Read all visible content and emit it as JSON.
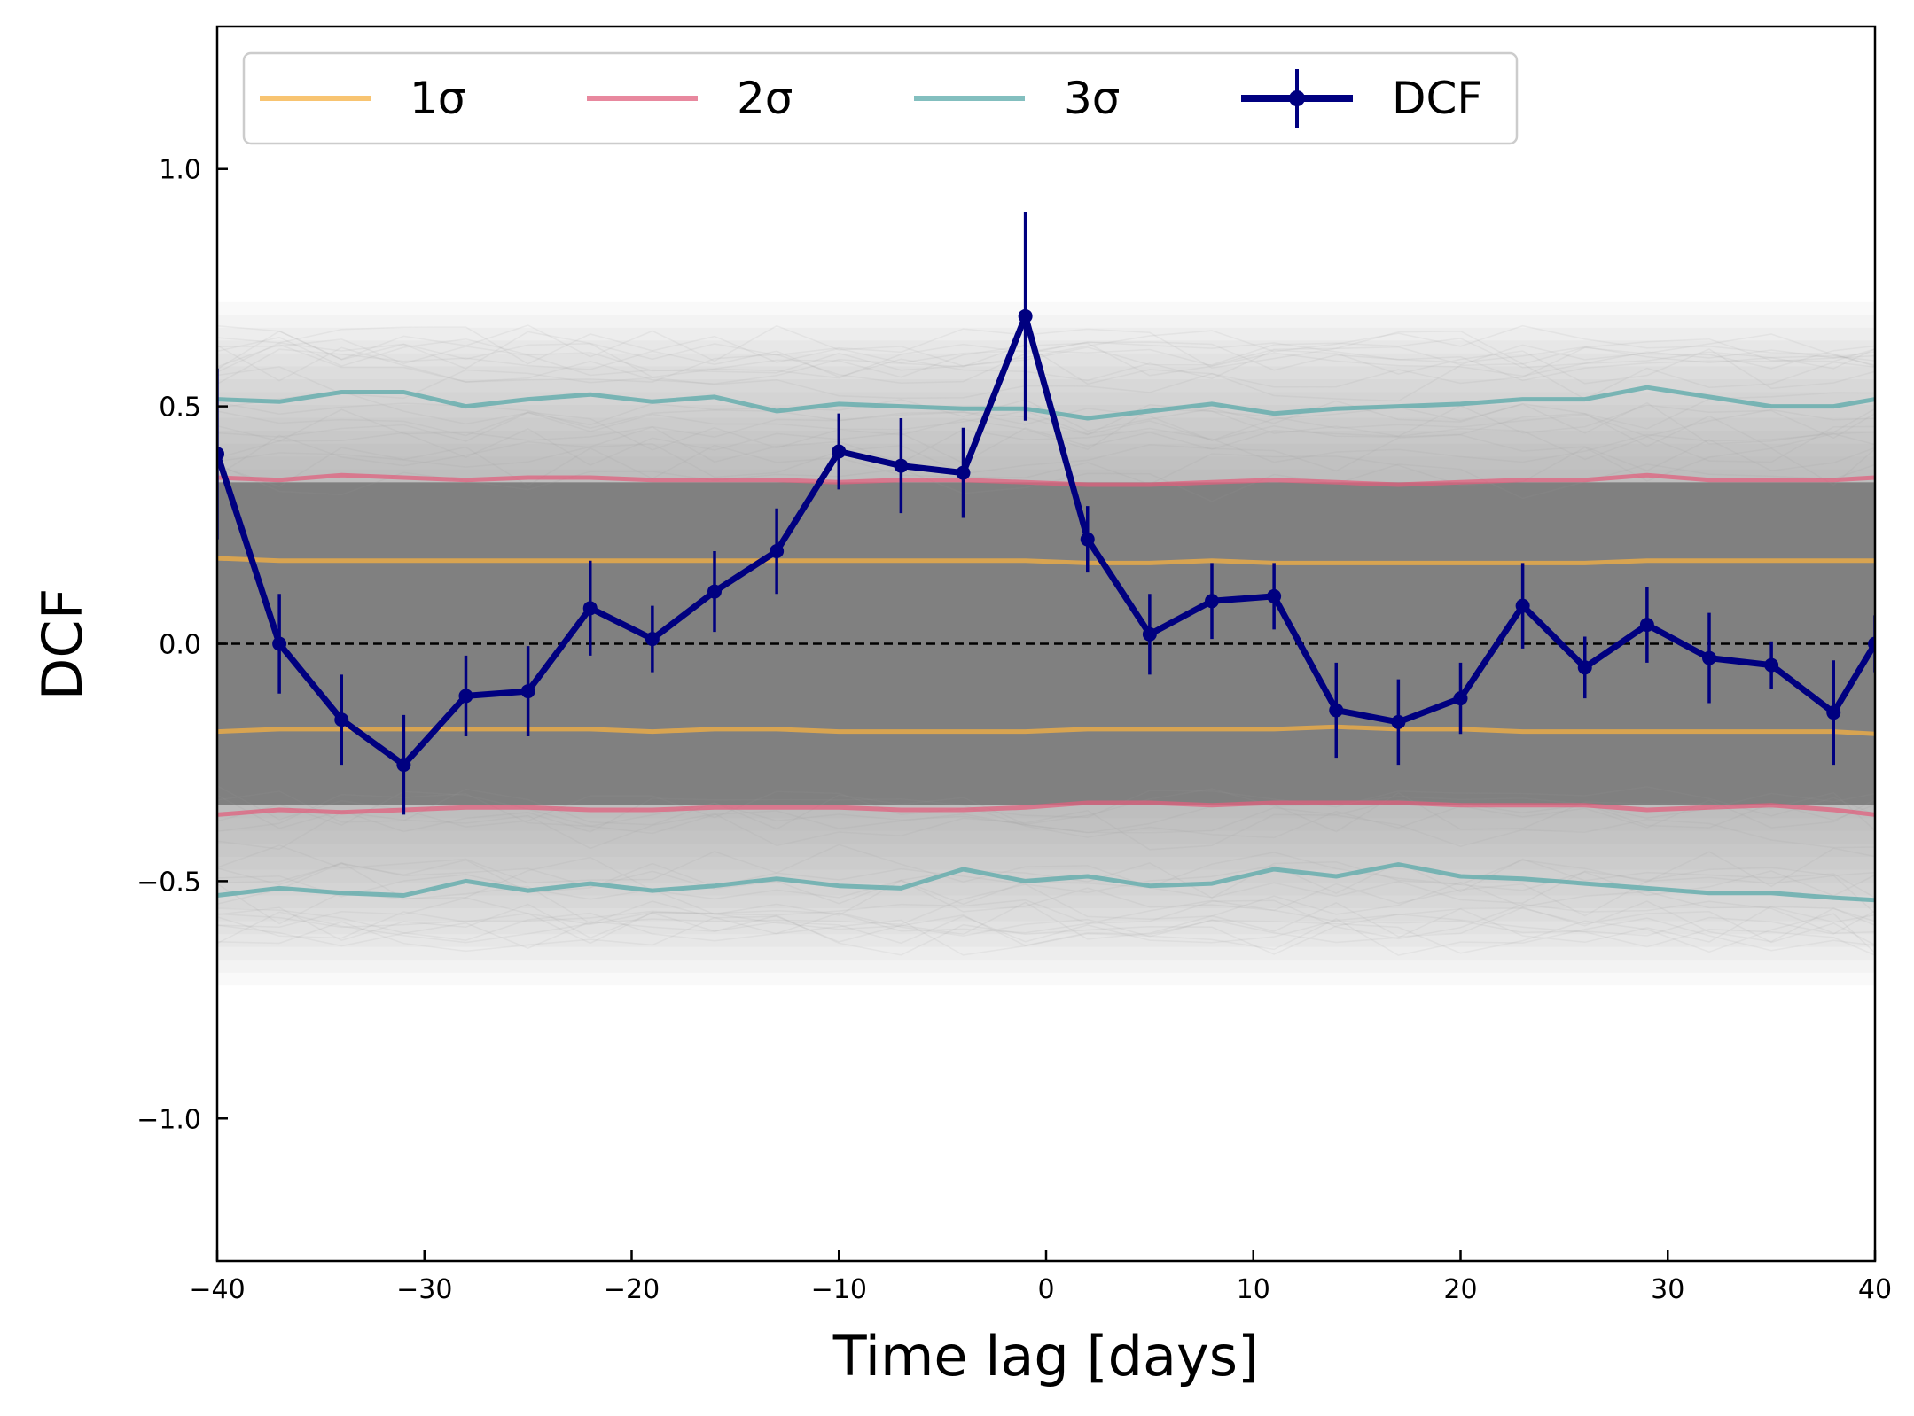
{
  "chart_data": {
    "type": "line",
    "xlabel": "Time lag [days]",
    "ylabel": "DCF",
    "xlim": [
      -40,
      40
    ],
    "ylim": [
      -1.3,
      1.3
    ],
    "xticks": [
      -40,
      -30,
      -20,
      -10,
      0,
      10,
      20,
      30,
      40
    ],
    "yticks": [
      -1.0,
      -0.5,
      0.0,
      0.5,
      1.0
    ],
    "xtick_labels": [
      "−40",
      "−30",
      "−20",
      "−10",
      "0",
      "10",
      "20",
      "30",
      "40"
    ],
    "ytick_labels": [
      "−1.0",
      "−0.5",
      "0.0",
      "0.5",
      "1.0"
    ],
    "grid": false,
    "legend_position": "top",
    "reference_line": {
      "y": 0.0,
      "style": "dashed",
      "color": "#000000"
    },
    "simulated_band": {
      "color": "#808080",
      "core_halfwidth": 0.34,
      "outer_halfwidth": 0.72
    },
    "x": [
      -40,
      -37,
      -34,
      -31,
      -28,
      -25,
      -22,
      -19,
      -16,
      -13,
      -10,
      -7,
      -4,
      -1,
      2,
      5,
      8,
      11,
      14,
      17,
      20,
      23,
      26,
      29,
      32,
      35,
      38,
      40
    ],
    "series": [
      {
        "name": "1σ",
        "color": "#f5b041",
        "upper": [
          0.18,
          0.175,
          0.175,
          0.175,
          0.175,
          0.175,
          0.175,
          0.175,
          0.175,
          0.175,
          0.175,
          0.175,
          0.175,
          0.175,
          0.17,
          0.17,
          0.175,
          0.17,
          0.17,
          0.17,
          0.17,
          0.17,
          0.17,
          0.175,
          0.175,
          0.175,
          0.175,
          0.175
        ],
        "lower": [
          -0.185,
          -0.18,
          -0.18,
          -0.18,
          -0.18,
          -0.18,
          -0.18,
          -0.185,
          -0.18,
          -0.18,
          -0.185,
          -0.185,
          -0.185,
          -0.185,
          -0.18,
          -0.18,
          -0.18,
          -0.18,
          -0.175,
          -0.18,
          -0.18,
          -0.185,
          -0.185,
          -0.185,
          -0.185,
          -0.185,
          -0.185,
          -0.19
        ]
      },
      {
        "name": "2σ",
        "color": "#e0607e",
        "upper": [
          0.35,
          0.345,
          0.355,
          0.35,
          0.345,
          0.35,
          0.35,
          0.345,
          0.345,
          0.345,
          0.34,
          0.345,
          0.345,
          0.34,
          0.335,
          0.335,
          0.34,
          0.345,
          0.34,
          0.335,
          0.34,
          0.345,
          0.345,
          0.355,
          0.345,
          0.345,
          0.345,
          0.35
        ],
        "lower": [
          -0.36,
          -0.35,
          -0.355,
          -0.35,
          -0.345,
          -0.345,
          -0.35,
          -0.35,
          -0.345,
          -0.345,
          -0.345,
          -0.35,
          -0.35,
          -0.345,
          -0.335,
          -0.335,
          -0.34,
          -0.335,
          -0.335,
          -0.335,
          -0.34,
          -0.34,
          -0.34,
          -0.35,
          -0.345,
          -0.34,
          -0.35,
          -0.36
        ]
      },
      {
        "name": "3σ",
        "color": "#5aa9a9",
        "upper": [
          0.515,
          0.51,
          0.53,
          0.53,
          0.5,
          0.515,
          0.525,
          0.51,
          0.52,
          0.49,
          0.505,
          0.5,
          0.495,
          0.495,
          0.475,
          0.49,
          0.505,
          0.485,
          0.495,
          0.5,
          0.505,
          0.515,
          0.515,
          0.54,
          0.52,
          0.5,
          0.5,
          0.515
        ],
        "lower": [
          -0.53,
          -0.515,
          -0.525,
          -0.53,
          -0.5,
          -0.52,
          -0.505,
          -0.52,
          -0.51,
          -0.495,
          -0.51,
          -0.515,
          -0.475,
          -0.5,
          -0.49,
          -0.51,
          -0.505,
          -0.475,
          -0.49,
          -0.465,
          -0.49,
          -0.495,
          -0.505,
          -0.515,
          -0.525,
          -0.525,
          -0.535,
          -0.54
        ]
      },
      {
        "name": "DCF",
        "color": "#000080",
        "x": [
          -40,
          -37,
          -34,
          -31,
          -28,
          -25,
          -22,
          -19,
          -16,
          -13,
          -10,
          -7,
          -4,
          -1,
          2,
          5,
          8,
          11,
          14,
          17,
          20,
          23,
          26,
          29,
          32,
          35,
          38,
          40
        ],
        "values": [
          0.4,
          0.0,
          -0.16,
          -0.255,
          -0.11,
          -0.1,
          0.075,
          0.01,
          0.11,
          0.195,
          0.405,
          0.375,
          0.36,
          0.69,
          0.22,
          0.02,
          0.09,
          0.1,
          -0.14,
          -0.165,
          -0.115,
          0.08,
          -0.05,
          0.04,
          -0.03,
          -0.045,
          -0.145,
          0.0
        ],
        "errors": [
          0.18,
          0.105,
          0.095,
          0.105,
          0.085,
          0.095,
          0.1,
          0.07,
          0.085,
          0.09,
          0.08,
          0.1,
          0.095,
          0.22,
          0.07,
          0.085,
          0.08,
          0.07,
          0.1,
          0.09,
          0.075,
          0.09,
          0.065,
          0.08,
          0.095,
          0.05,
          0.11,
          0.06
        ]
      }
    ]
  }
}
